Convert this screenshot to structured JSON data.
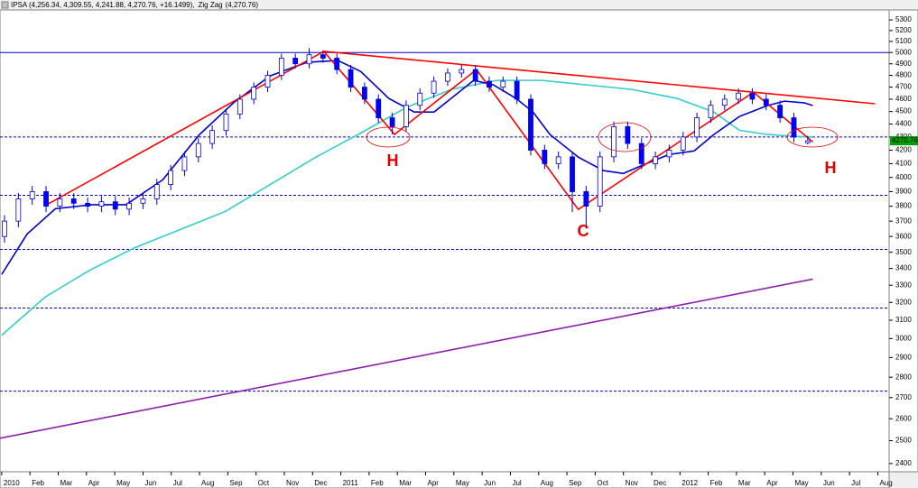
{
  "chart_data": {
    "type": "candlestick",
    "legend_text": [
      "IPSA (4,256.34, 4,309.55, 4,241.88, 4,270.76, +16.1499),",
      "Zig Zag",
      "(4,270.76)"
    ],
    "last_price_label": "4270.76",
    "annotations": [
      "H",
      "C",
      "H"
    ],
    "log_scale": true,
    "up_color": "#ffffff",
    "down_color": "#0000ff",
    "outline_color": "#0000cc",
    "x": [
      0.1,
      0.59,
      1.08,
      1.57,
      2.06,
      2.55,
      3.04,
      3.53,
      4.02,
      4.51,
      5.0,
      5.49,
      5.98,
      6.47,
      6.96,
      7.45,
      7.94,
      8.43,
      8.92,
      9.41,
      9.9,
      10.39,
      10.88,
      11.37,
      11.86,
      12.35,
      12.84,
      13.33,
      13.82,
      14.31,
      14.8,
      15.29,
      15.78,
      16.27,
      16.76,
      17.25,
      17.74,
      18.23,
      18.72,
      19.21,
      19.7,
      20.19,
      20.68,
      21.17,
      21.66,
      22.15,
      22.64,
      23.13,
      23.62,
      24.11,
      24.6,
      25.09,
      25.58,
      26.07,
      26.56,
      27.05,
      27.54,
      28.03,
      28.52
    ],
    "open": [
      3600,
      3700,
      3850,
      3900,
      3800,
      3850,
      3820,
      3800,
      3830,
      3780,
      3820,
      3850,
      3950,
      4050,
      4150,
      4250,
      4350,
      4480,
      4600,
      4700,
      4800,
      4950,
      4900,
      4980,
      4950,
      4850,
      4700,
      4600,
      4450,
      4380,
      4550,
      4650,
      4750,
      4820,
      4850,
      4750,
      4700,
      4750,
      4600,
      4200,
      4100,
      4150,
      3900,
      3800,
      4150,
      4380,
      4250,
      4100,
      4150,
      4200,
      4300,
      4450,
      4550,
      4600,
      4650,
      4600,
      4550,
      4450,
      4256.34
    ],
    "high": [
      3740,
      3890,
      3940,
      3940,
      3890,
      3890,
      3860,
      3870,
      3870,
      3860,
      3890,
      3990,
      4090,
      4190,
      4290,
      4390,
      4520,
      4640,
      4740,
      4840,
      4990,
      4990,
      5040,
      5020,
      4990,
      4890,
      4740,
      4640,
      4490,
      4590,
      4690,
      4790,
      4860,
      4890,
      4890,
      4790,
      4790,
      4790,
      4640,
      4240,
      4190,
      4190,
      3940,
      4190,
      4420,
      4420,
      4290,
      4190,
      4240,
      4340,
      4490,
      4590,
      4640,
      4690,
      4690,
      4640,
      4590,
      4490,
      4309.55
    ],
    "low": [
      3560,
      3660,
      3810,
      3760,
      3760,
      3780,
      3760,
      3760,
      3740,
      3740,
      3780,
      3810,
      3910,
      4010,
      4110,
      4210,
      4310,
      4440,
      4560,
      4660,
      4760,
      4860,
      4860,
      4910,
      4810,
      4660,
      4560,
      4410,
      4320,
      4340,
      4510,
      4610,
      4710,
      4780,
      4710,
      4660,
      4660,
      4560,
      4160,
      4060,
      4060,
      3760,
      3650,
      3760,
      4110,
      4210,
      4060,
      4060,
      4110,
      4160,
      4260,
      4410,
      4510,
      4560,
      4560,
      4510,
      4410,
      4260,
      4241.88
    ],
    "close": [
      3700,
      3850,
      3900,
      3800,
      3850,
      3820,
      3800,
      3830,
      3780,
      3820,
      3850,
      3950,
      4050,
      4150,
      4250,
      4350,
      4480,
      4600,
      4700,
      4800,
      4950,
      4900,
      4980,
      4950,
      4850,
      4700,
      4600,
      4450,
      4380,
      4550,
      4650,
      4750,
      4820,
      4850,
      4750,
      4700,
      4750,
      4600,
      4200,
      4100,
      4150,
      3900,
      3800,
      4150,
      4380,
      4250,
      4100,
      4150,
      4200,
      4300,
      4450,
      4550,
      4600,
      4650,
      4600,
      4550,
      4450,
      4300,
      4270.76
    ],
    "lines": [
      {
        "color": "#33cccc",
        "x": [
          0,
          1.53,
          3.13,
          4.73,
          6.33,
          7.92,
          9.52,
          11.12,
          12.72,
          14.31,
          15.91,
          17.51,
          19.11,
          20.7,
          22.3,
          23.9,
          25.2,
          26.1,
          27.1,
          28.05,
          28.7
        ],
        "values": [
          3018,
          3230,
          3391,
          3530,
          3646,
          3765,
          3952,
          4148,
          4332,
          4532,
          4681,
          4757,
          4757,
          4719,
          4681,
          4606,
          4496,
          4352,
          4319,
          4305,
          4298
        ]
      },
      {
        "color": "#0000cc",
        "x": [
          0,
          0.9,
          1.9,
          3.2,
          4.4,
          5.7,
          7,
          8.2,
          9.5,
          10.8,
          11.9,
          12.7,
          13.7,
          14.6,
          15.3,
          15.9,
          16.7,
          17.4,
          18.2,
          18.8,
          19.4,
          20.4,
          21.3,
          22,
          22.6,
          23.6,
          24.5,
          25.2,
          26.1,
          27.1,
          27.7,
          28.4,
          28.7
        ],
        "values": [
          3364,
          3616,
          3783,
          3810,
          3810,
          3984,
          4319,
          4570,
          4796,
          4913,
          4929,
          4834,
          4606,
          4496,
          4496,
          4606,
          4757,
          4719,
          4606,
          4496,
          4319,
          4148,
          4049,
          4029,
          4082,
          4167,
          4194,
          4319,
          4460,
          4548,
          4584,
          4570,
          4548
        ]
      },
      {
        "color": "#ff0000",
        "x": [
          1.5,
          11.4,
          13.9,
          16.8,
          20.4,
          26.6,
          28.7
        ],
        "values": [
          3800,
          5010,
          4320,
          4850,
          3778,
          4658,
          4262
        ]
      },
      {
        "color": "#ff0000",
        "x": [
          11.4,
          30.9
        ],
        "values": [
          5010,
          4563
        ]
      },
      {
        "color": "#8a1fb0",
        "x": [
          -0.06,
          28.7
        ],
        "values": [
          2511,
          3336
        ]
      }
    ],
    "hlines": [
      {
        "value": 5000,
        "color": "#0000cc",
        "dashed": false
      },
      {
        "value": 4300,
        "color": "#0000cc",
        "dashed": true
      },
      {
        "value": 3875,
        "color": "#0000cc",
        "dashed": true
      },
      {
        "value": 3518,
        "color": "#0000cc",
        "dashed": true
      },
      {
        "value": 3168,
        "color": "#0000cc",
        "dashed": true
      },
      {
        "value": 2731,
        "color": "#0000cc",
        "dashed": true
      }
    ],
    "xlim": [
      -0.06,
      31.4
    ],
    "ylim": [
      2365,
      5395
    ],
    "xticks": [
      {
        "value": 0,
        "label": "2010"
      },
      {
        "value": 1,
        "label": "Feb"
      },
      {
        "value": 2,
        "label": "Mar"
      },
      {
        "value": 3,
        "label": "Apr"
      },
      {
        "value": 4,
        "label": "May"
      },
      {
        "value": 5,
        "label": "Jun"
      },
      {
        "value": 6,
        "label": "Jul"
      },
      {
        "value": 7,
        "label": "Aug"
      },
      {
        "value": 8,
        "label": "Sep"
      },
      {
        "value": 9,
        "label": "Oct"
      },
      {
        "value": 10,
        "label": "Nov"
      },
      {
        "value": 11,
        "label": "Dec"
      },
      {
        "value": 12,
        "label": "2011"
      },
      {
        "value": 13,
        "label": "Feb"
      },
      {
        "value": 14,
        "label": "Mar"
      },
      {
        "value": 15,
        "label": "Apr"
      },
      {
        "value": 16,
        "label": "May"
      },
      {
        "value": 17,
        "label": "Jun"
      },
      {
        "value": 18,
        "label": "Jul"
      },
      {
        "value": 19,
        "label": "Aug"
      },
      {
        "value": 20,
        "label": "Sep"
      },
      {
        "value": 21,
        "label": "Oct"
      },
      {
        "value": 22,
        "label": "Nov"
      },
      {
        "value": 23,
        "label": "Dec"
      },
      {
        "value": 24,
        "label": "2012"
      },
      {
        "value": 25,
        "label": "Feb"
      },
      {
        "value": 26,
        "label": "Mar"
      },
      {
        "value": 27,
        "label": "Apr"
      },
      {
        "value": 28,
        "label": "May"
      },
      {
        "value": 29,
        "label": "Jun"
      },
      {
        "value": 30,
        "label": "Jul"
      },
      {
        "value": 31,
        "label": "Aug"
      }
    ],
    "yticks": [
      2400,
      2500,
      2600,
      2700,
      2800,
      2900,
      3000,
      3100,
      3200,
      3300,
      3400,
      3500,
      3600,
      3700,
      3800,
      3900,
      4000,
      4100,
      4200,
      4300,
      4400,
      4500,
      4600,
      4700,
      4800,
      4900,
      5000,
      5100,
      5200,
      5300
    ]
  }
}
